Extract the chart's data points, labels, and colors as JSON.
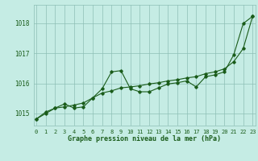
{
  "title": "Graphe pression niveau de la mer (hPa)",
  "background_color": "#c5ece4",
  "plot_bg_color": "#c5ece4",
  "grid_color": "#8dbfb5",
  "line_color": "#1a5c1a",
  "text_color": "#1a5c1a",
  "x_hours": [
    0,
    1,
    2,
    3,
    4,
    5,
    6,
    7,
    8,
    9,
    10,
    11,
    12,
    13,
    14,
    15,
    16,
    17,
    18,
    19,
    20,
    21,
    22,
    23
  ],
  "line1_y": [
    1014.82,
    1015.05,
    1015.18,
    1015.22,
    1015.28,
    1015.35,
    1015.52,
    1015.68,
    1015.75,
    1015.85,
    1015.88,
    1015.92,
    1015.98,
    1016.02,
    1016.08,
    1016.12,
    1016.18,
    1016.22,
    1016.32,
    1016.38,
    1016.48,
    1016.72,
    1017.15,
    1018.22
  ],
  "line2_y": [
    1014.82,
    1015.0,
    1015.18,
    1015.32,
    1015.18,
    1015.22,
    1015.52,
    1015.82,
    1016.38,
    1016.42,
    1015.82,
    1015.72,
    1015.72,
    1015.85,
    1015.98,
    1016.02,
    1016.08,
    1015.88,
    1016.22,
    1016.28,
    1016.38,
    1016.95,
    1017.98,
    1018.22
  ],
  "ylim_min": 1014.6,
  "ylim_max": 1018.6,
  "yticks": [
    1015,
    1016,
    1017,
    1018
  ],
  "marker": "D",
  "marker_size": 1.8,
  "line_width": 0.8,
  "title_fontsize": 6.0,
  "tick_fontsize": 5.5
}
